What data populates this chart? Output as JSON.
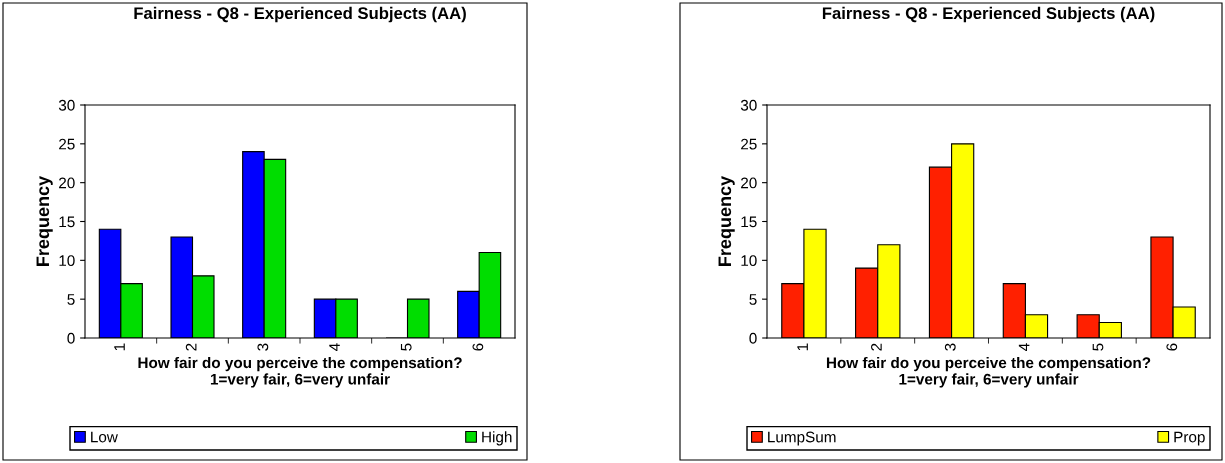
{
  "chart_data": [
    {
      "type": "bar",
      "title": "Fairness - Q8 - Experienced Subjects (AA)",
      "xlabel": "How fair do you perceive the compensation?\n1=very fair, 6=very unfair",
      "ylabel": "Frequency",
      "categories": [
        "1",
        "2",
        "3",
        "4",
        "5",
        "6"
      ],
      "series": [
        {
          "name": "Low",
          "color": "#0000ff",
          "values": [
            14,
            13,
            24,
            5,
            0,
            6
          ]
        },
        {
          "name": "High",
          "color": "#00dd00",
          "values": [
            7,
            8,
            23,
            5,
            5,
            11
          ]
        }
      ],
      "ylim": [
        0,
        30
      ],
      "yticks": [
        0,
        5,
        10,
        15,
        20,
        25,
        30
      ],
      "grid": false,
      "legend": "bottom"
    },
    {
      "type": "bar",
      "title": "Fairness - Q8 - Experienced Subjects (AA)",
      "xlabel": "How fair do you perceive the compensation?\n1=very fair, 6=very unfair",
      "ylabel": "Frequency",
      "categories": [
        "1",
        "2",
        "3",
        "4",
        "5",
        "6"
      ],
      "series": [
        {
          "name": "LumpSum",
          "color": "#ff2000",
          "values": [
            7,
            9,
            22,
            7,
            3,
            13
          ]
        },
        {
          "name": "Prop",
          "color": "#ffff00",
          "values": [
            14,
            12,
            25,
            3,
            2,
            4
          ]
        }
      ],
      "ylim": [
        0,
        30
      ],
      "yticks": [
        0,
        5,
        10,
        15,
        20,
        25,
        30
      ],
      "grid": false,
      "legend": "bottom"
    }
  ]
}
